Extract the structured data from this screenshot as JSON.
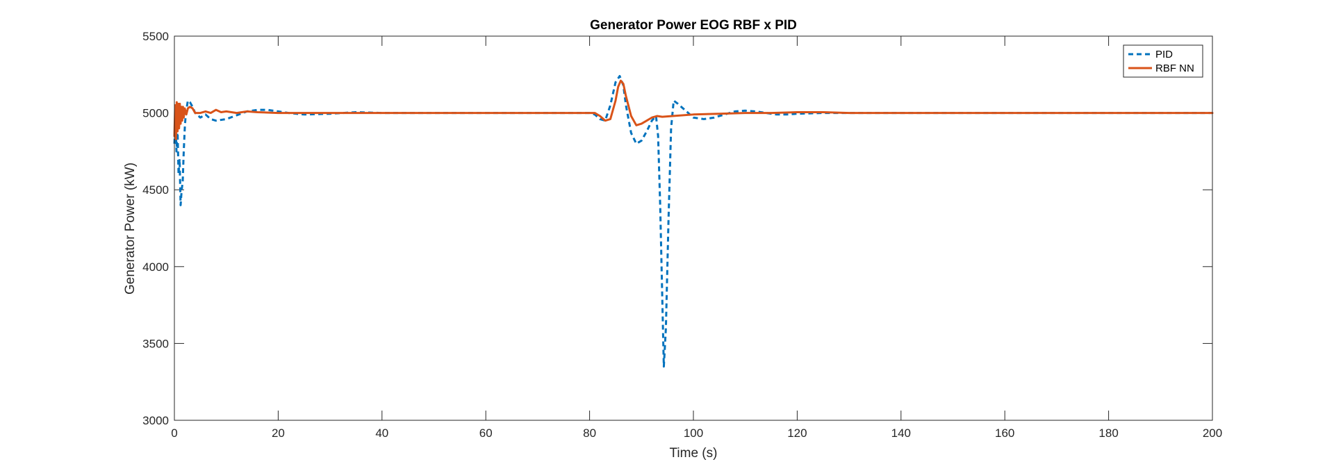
{
  "chart_data": {
    "type": "line",
    "title": "Generator Power EOG RBF x PID",
    "xlabel": "Time (s)",
    "ylabel": "Generator Power (kW)",
    "xlim": [
      0,
      200
    ],
    "ylim": [
      3000,
      5500
    ],
    "xticks": [
      0,
      20,
      40,
      60,
      80,
      100,
      120,
      140,
      160,
      180,
      200
    ],
    "yticks": [
      3000,
      3500,
      4000,
      4500,
      5000,
      5500
    ],
    "grid": false,
    "legend": {
      "position": "top-right",
      "entries": [
        "PID",
        "RBF NN"
      ]
    },
    "series": [
      {
        "name": "PID",
        "color": "#0072BD",
        "style": "dashed",
        "x": [
          0,
          0.2,
          0.4,
          0.6,
          0.8,
          1.0,
          1.2,
          1.4,
          1.6,
          1.8,
          2.0,
          2.2,
          2.6,
          3.0,
          3.5,
          4,
          5,
          6,
          7,
          8,
          9,
          10,
          12,
          14,
          16,
          18,
          20,
          22,
          25,
          30,
          35,
          40,
          50,
          60,
          70,
          80,
          81,
          82,
          83,
          84,
          85,
          85.8,
          86.5,
          87,
          88,
          89,
          90,
          91,
          92,
          92.8,
          93.2,
          93.6,
          94,
          94.3,
          94.7,
          95.2,
          95.7,
          96.2,
          97,
          98,
          100,
          102,
          104,
          106,
          108,
          110,
          112,
          114,
          116,
          118,
          120,
          125,
          130,
          135,
          140,
          150,
          160,
          170,
          180,
          190,
          200
        ],
        "y": [
          4800,
          4950,
          4750,
          4900,
          4600,
          4700,
          4400,
          4500,
          4550,
          4750,
          4900,
          5000,
          5080,
          5070,
          5040,
          5000,
          4970,
          4990,
          4960,
          4950,
          4955,
          4960,
          4985,
          5010,
          5020,
          5020,
          5010,
          5000,
          4990,
          4995,
          5005,
          5000,
          5000,
          5000,
          5000,
          5000,
          4990,
          4960,
          4950,
          5050,
          5200,
          5240,
          5180,
          5050,
          4870,
          4800,
          4820,
          4880,
          4950,
          4980,
          4850,
          4400,
          3800,
          3350,
          3600,
          4300,
          4900,
          5080,
          5060,
          5030,
          4970,
          4960,
          4970,
          4990,
          5010,
          5015,
          5010,
          5000,
          4990,
          4990,
          4995,
          5000,
          5000,
          5000,
          5000,
          5000,
          5000,
          5000,
          5000,
          5000,
          5000
        ]
      },
      {
        "name": "RBF NN",
        "color": "#D95319",
        "style": "solid",
        "x": [
          0,
          0.15,
          0.3,
          0.45,
          0.6,
          0.75,
          0.9,
          1.05,
          1.2,
          1.35,
          1.5,
          1.65,
          1.8,
          2.0,
          2.3,
          2.6,
          3.0,
          3.5,
          4,
          5,
          6,
          7,
          8,
          9,
          10,
          12,
          14,
          16,
          20,
          30,
          40,
          60,
          80,
          81,
          82,
          83,
          84,
          85,
          85.5,
          86,
          86.5,
          87,
          88,
          89,
          90,
          91,
          92,
          93,
          94,
          96,
          100,
          105,
          110,
          115,
          120,
          125,
          130,
          140,
          160,
          180,
          200
        ],
        "y": [
          4850,
          5050,
          4830,
          5070,
          4880,
          5060,
          4900,
          5060,
          4930,
          5040,
          4950,
          5040,
          4970,
          5030,
          4990,
          5030,
          5040,
          5030,
          5000,
          5000,
          5010,
          5000,
          5020,
          5005,
          5010,
          5000,
          5010,
          5005,
          5000,
          5000,
          5000,
          5000,
          5000,
          5000,
          4980,
          4950,
          4960,
          5080,
          5170,
          5210,
          5190,
          5110,
          4980,
          4920,
          4930,
          4950,
          4970,
          4980,
          4975,
          4980,
          4990,
          4995,
          5000,
          5000,
          5005,
          5005,
          5000,
          5000,
          5000,
          5000,
          5000
        ]
      }
    ]
  }
}
